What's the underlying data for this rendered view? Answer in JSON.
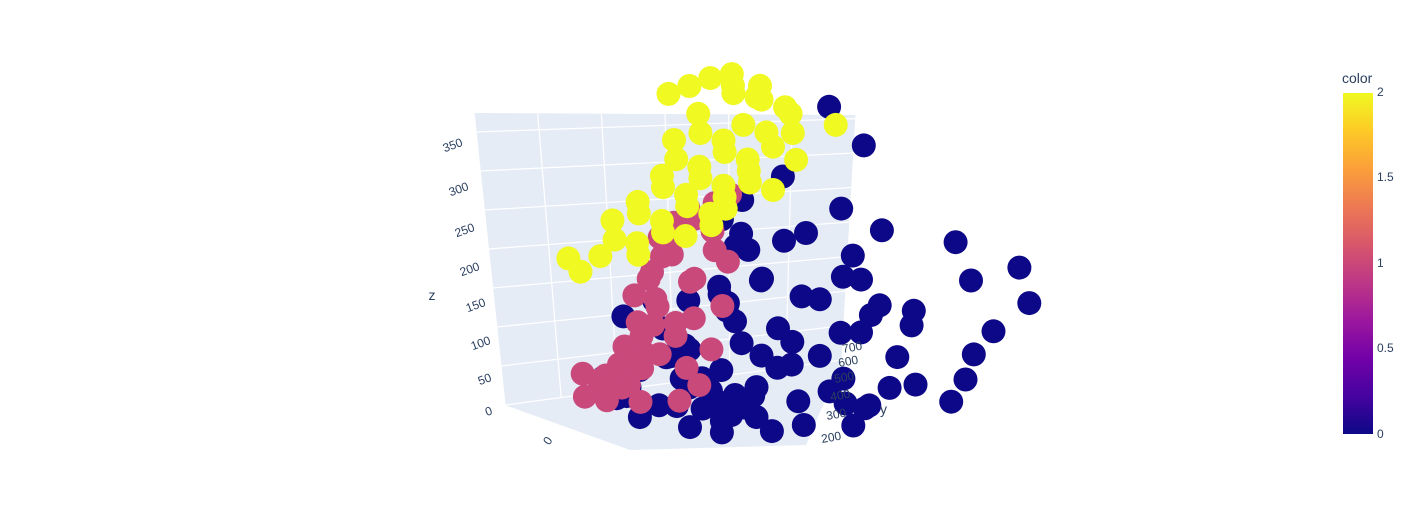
{
  "chart_data": {
    "type": "scatter3d",
    "axes": {
      "x": {
        "title": "",
        "ticks": [
          "0"
        ],
        "range": [
          -120,
          620
        ]
      },
      "y": {
        "title": "y",
        "ticks": [
          "200",
          "300",
          "400",
          "500",
          "600",
          "700"
        ],
        "range": [
          130,
          760
        ]
      },
      "z": {
        "title": "z",
        "ticks": [
          "0",
          "50",
          "100",
          "150",
          "200",
          "250",
          "300",
          "350"
        ],
        "range": [
          -15,
          385
        ]
      }
    },
    "background_color": "#e5ecf6",
    "grid": true,
    "colorbar": {
      "title": "color",
      "min": 0,
      "max": 2,
      "ticks": [
        "0",
        "0.5",
        "1",
        "1.5",
        "2"
      ],
      "colorscale": [
        "#0d0887",
        "#46039f",
        "#7201a8",
        "#9c179e",
        "#bd3786",
        "#d8576b",
        "#ed7953",
        "#fb9f3a",
        "#fdca26",
        "#f0f921"
      ]
    },
    "clusters": [
      {
        "color_value": 0,
        "color": "#0d0887",
        "points": [
          [
            140,
            690,
            340
          ],
          [
            210,
            675,
            300
          ],
          [
            130,
            600,
            260
          ],
          [
            90,
            560,
            230
          ],
          [
            110,
            500,
            215
          ],
          [
            160,
            470,
            190
          ],
          [
            220,
            500,
            200
          ],
          [
            300,
            600,
            210
          ],
          [
            350,
            680,
            190
          ],
          [
            420,
            720,
            160
          ],
          [
            450,
            700,
            120
          ],
          [
            400,
            650,
            150
          ],
          [
            100,
            540,
            190
          ],
          [
            130,
            520,
            175
          ],
          [
            190,
            480,
            150
          ],
          [
            170,
            420,
            135
          ],
          [
            240,
            430,
            160
          ],
          [
            280,
            460,
            140
          ],
          [
            320,
            500,
            165
          ],
          [
            260,
            580,
            175
          ],
          [
            120,
            480,
            110
          ],
          [
            160,
            450,
            95
          ],
          [
            200,
            400,
            120
          ],
          [
            240,
            380,
            85
          ],
          [
            280,
            410,
            105
          ],
          [
            300,
            380,
            60
          ],
          [
            340,
            420,
            75
          ],
          [
            360,
            480,
            100
          ],
          [
            380,
            560,
            120
          ],
          [
            330,
            600,
            90
          ],
          [
            150,
            330,
            100
          ],
          [
            180,
            300,
            70
          ],
          [
            220,
            320,
            45
          ],
          [
            260,
            300,
            20
          ],
          [
            300,
            330,
            30
          ],
          [
            340,
            300,
            50
          ],
          [
            380,
            330,
            80
          ],
          [
            420,
            380,
            60
          ],
          [
            430,
            450,
            40
          ],
          [
            400,
            500,
            70
          ],
          [
            120,
            400,
            60
          ],
          [
            140,
            360,
            30
          ],
          [
            170,
            380,
            15
          ],
          [
            210,
            350,
            10
          ],
          [
            250,
            360,
            5
          ],
          [
            290,
            340,
            0
          ],
          [
            330,
            380,
            20
          ],
          [
            370,
            400,
            35
          ],
          [
            410,
            420,
            15
          ],
          [
            440,
            400,
            25
          ],
          [
            100,
            260,
            40
          ],
          [
            140,
            240,
            20
          ],
          [
            180,
            220,
            30
          ],
          [
            220,
            200,
            10
          ],
          [
            260,
            230,
            25
          ],
          [
            300,
            210,
            5
          ],
          [
            340,
            230,
            15
          ],
          [
            380,
            210,
            30
          ],
          [
            420,
            240,
            10
          ],
          [
            460,
            260,
            20
          ],
          [
            200,
            450,
            55
          ],
          [
            240,
            470,
            75
          ],
          [
            280,
            520,
            85
          ],
          [
            320,
            540,
            110
          ],
          [
            360,
            520,
            130
          ],
          [
            180,
            250,
            60
          ],
          [
            220,
            270,
            80
          ],
          [
            260,
            260,
            100
          ],
          [
            300,
            280,
            70
          ],
          [
            340,
            260,
            45
          ],
          [
            150,
            440,
            140
          ],
          [
            110,
            420,
            120
          ],
          [
            120,
            350,
            130
          ],
          [
            90,
            320,
            110
          ],
          [
            250,
            520,
            125
          ],
          [
            290,
            560,
            150
          ],
          [
            200,
            560,
            200
          ],
          [
            230,
            600,
            230
          ],
          [
            480,
            560,
            75
          ],
          [
            460,
            620,
            95
          ],
          [
            500,
            520,
            50
          ],
          [
            520,
            470,
            30
          ],
          [
            500,
            430,
            55
          ],
          [
            470,
            330,
            40
          ],
          [
            510,
            300,
            20
          ],
          [
            320,
            200,
            60
          ],
          [
            360,
            180,
            40
          ],
          [
            280,
            180,
            35
          ],
          [
            240,
            170,
            55
          ],
          [
            400,
            170,
            15
          ]
        ]
      },
      {
        "color_value": 1,
        "color": "#c9497b",
        "points": [
          [
            0,
            400,
            50
          ],
          [
            20,
            380,
            30
          ],
          [
            40,
            360,
            10
          ],
          [
            10,
            420,
            80
          ],
          [
            30,
            440,
            100
          ],
          [
            0,
            460,
            130
          ],
          [
            20,
            470,
            160
          ],
          [
            40,
            480,
            190
          ],
          [
            60,
            450,
            170
          ],
          [
            50,
            420,
            150
          ],
          [
            70,
            400,
            120
          ],
          [
            80,
            380,
            90
          ],
          [
            60,
            350,
            60
          ],
          [
            90,
            340,
            40
          ],
          [
            80,
            310,
            20
          ],
          [
            100,
            330,
            70
          ],
          [
            90,
            300,
            50
          ],
          [
            110,
            280,
            25
          ],
          [
            100,
            260,
            10
          ],
          [
            120,
            300,
            5
          ],
          [
            130,
            360,
            0
          ],
          [
            110,
            400,
            35
          ],
          [
            60,
            500,
            210
          ],
          [
            80,
            520,
            230
          ],
          [
            100,
            490,
            200
          ],
          [
            120,
            470,
            180
          ],
          [
            40,
            510,
            220
          ],
          [
            20,
            500,
            200
          ],
          [
            0,
            490,
            180
          ],
          [
            10,
            350,
            20
          ],
          [
            30,
            320,
            5
          ],
          [
            50,
            300,
            15
          ],
          [
            70,
            280,
            30
          ],
          [
            60,
            260,
            10
          ],
          [
            140,
            420,
            60
          ],
          [
            150,
            380,
            20
          ],
          [
            130,
            460,
            110
          ],
          [
            110,
            500,
            160
          ],
          [
            90,
            540,
            240
          ],
          [
            0,
            380,
            20
          ],
          [
            20,
            300,
            30
          ],
          [
            -10,
            440,
            110
          ],
          [
            70,
            430,
            85
          ],
          [
            45,
            390,
            70
          ],
          [
            85,
            460,
            140
          ],
          [
            105,
            430,
            95
          ],
          [
            55,
            480,
            130
          ],
          [
            35,
            460,
            60
          ],
          [
            15,
            420,
            40
          ],
          [
            95,
            370,
            55
          ]
        ]
      },
      {
        "color_value": 2,
        "color": "#f0f921",
        "points": [
          [
            -20,
            600,
            360
          ],
          [
            0,
            620,
            370
          ],
          [
            20,
            640,
            375
          ],
          [
            40,
            620,
            365
          ],
          [
            60,
            600,
            360
          ],
          [
            80,
            630,
            368
          ],
          [
            100,
            610,
            355
          ],
          [
            -40,
            580,
            350
          ],
          [
            10,
            580,
            330
          ],
          [
            30,
            560,
            310
          ],
          [
            50,
            580,
            300
          ],
          [
            70,
            560,
            290
          ],
          [
            90,
            580,
            280
          ],
          [
            110,
            560,
            270
          ],
          [
            130,
            540,
            260
          ],
          [
            150,
            560,
            250
          ],
          [
            0,
            540,
            300
          ],
          [
            20,
            520,
            280
          ],
          [
            40,
            540,
            270
          ],
          [
            60,
            520,
            260
          ],
          [
            80,
            540,
            250
          ],
          [
            100,
            520,
            240
          ],
          [
            120,
            500,
            230
          ],
          [
            10,
            500,
            260
          ],
          [
            30,
            480,
            250
          ],
          [
            50,
            500,
            240
          ],
          [
            70,
            480,
            230
          ],
          [
            90,
            500,
            220
          ],
          [
            110,
            480,
            210
          ],
          [
            0,
            460,
            230
          ],
          [
            20,
            440,
            220
          ],
          [
            40,
            460,
            210
          ],
          [
            60,
            440,
            200
          ],
          [
            80,
            460,
            195
          ],
          [
            -10,
            420,
            210
          ],
          [
            10,
            400,
            190
          ],
          [
            30,
            420,
            185
          ],
          [
            50,
            400,
            175
          ],
          [
            -60,
            380,
            160
          ],
          [
            -20,
            360,
            150
          ],
          [
            0,
            380,
            170
          ],
          [
            200,
            640,
            330
          ],
          [
            160,
            600,
            320
          ],
          [
            140,
            620,
            340
          ],
          [
            180,
            580,
            290
          ],
          [
            60,
            640,
            350
          ],
          [
            100,
            650,
            340
          ],
          [
            70,
            600,
            320
          ],
          [
            90,
            620,
            310
          ],
          [
            130,
            590,
            300
          ]
        ]
      }
    ]
  }
}
